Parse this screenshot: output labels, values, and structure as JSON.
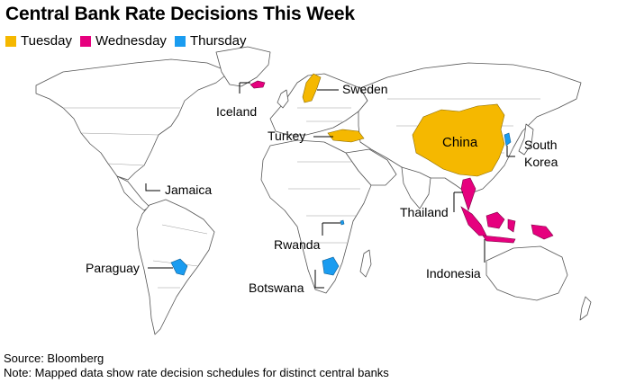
{
  "title": "Central Bank Rate Decisions This Week",
  "legend": [
    {
      "label": "Tuesday",
      "color": "#f5b800"
    },
    {
      "label": "Wednesday",
      "color": "#e6007e"
    },
    {
      "label": "Thursday",
      "color": "#1a9cf0"
    }
  ],
  "countries": {
    "sweden": "Sweden",
    "iceland": "Iceland",
    "turkey": "Turkey",
    "china": "China",
    "south_korea_line1": "South",
    "south_korea_line2": "Korea",
    "jamaica": "Jamaica",
    "thailand": "Thailand",
    "rwanda": "Rwanda",
    "paraguay": "Paraguay",
    "botswana": "Botswana",
    "indonesia": "Indonesia"
  },
  "colors": {
    "land": "#ffffff",
    "border": "#9a9a9a",
    "outline": "#555555"
  },
  "footer": {
    "source": "Source: Bloomberg",
    "note": "Note: Mapped data show rate decision schedules for distinct central banks"
  }
}
